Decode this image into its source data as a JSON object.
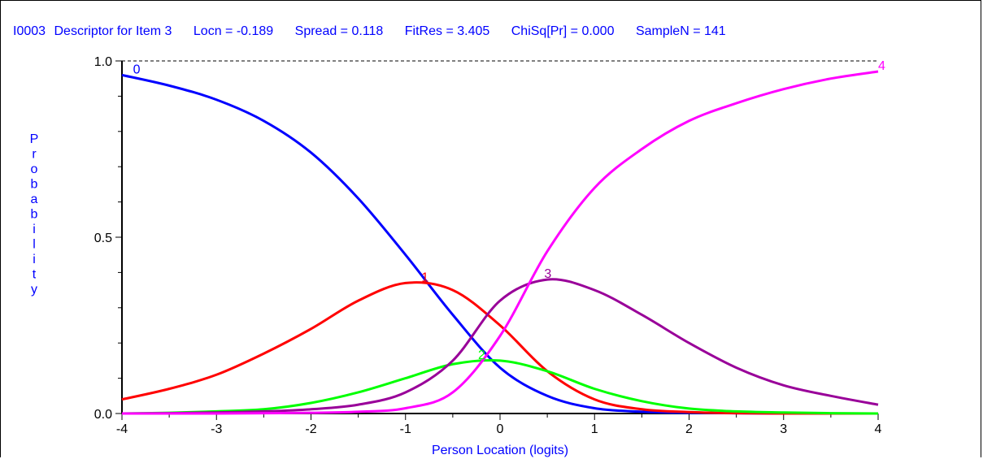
{
  "header": {
    "item": "I0003",
    "descriptor": "Descriptor for Item 3",
    "locn": "Locn = -0.189",
    "spread": "Spread = 0.118",
    "fitres": "FitRes = 3.405",
    "chisq": "ChiSq[Pr] = 0.000",
    "samplen": "SampleN = 141"
  },
  "chart_data": {
    "type": "line",
    "title": "",
    "xlabel": "Person Location (logits)",
    "ylabel": "Probability",
    "xlim": [
      -4,
      4
    ],
    "ylim": [
      0,
      1
    ],
    "x_ticks": [
      "-4",
      "-3",
      "-2",
      "-1",
      "0",
      "1",
      "2",
      "3",
      "4"
    ],
    "y_ticks": [
      "0.0",
      "0.5",
      "1.0"
    ],
    "reference_line": 1.0,
    "x": [
      -4,
      -3.5,
      -3,
      -2.5,
      -2,
      -1.5,
      -1,
      -0.5,
      0,
      0.5,
      1,
      1.5,
      2,
      2.5,
      3,
      3.5,
      4
    ],
    "series": [
      {
        "name": "0",
        "color": "#0000ff",
        "values": [
          0.96,
          0.93,
          0.89,
          0.83,
          0.74,
          0.61,
          0.45,
          0.28,
          0.13,
          0.05,
          0.015,
          0.005,
          0.002,
          0.001,
          0.0,
          0.0,
          0.0
        ]
      },
      {
        "name": "1",
        "color": "#ff0000",
        "values": [
          0.04,
          0.07,
          0.11,
          0.17,
          0.24,
          0.32,
          0.37,
          0.35,
          0.25,
          0.12,
          0.04,
          0.012,
          0.004,
          0.001,
          0.0,
          0.0,
          0.0
        ]
      },
      {
        "name": "2",
        "color": "#00ff00",
        "values": [
          0.0,
          0.002,
          0.006,
          0.012,
          0.03,
          0.06,
          0.1,
          0.14,
          0.15,
          0.12,
          0.07,
          0.035,
          0.014,
          0.006,
          0.003,
          0.001,
          0.0
        ]
      },
      {
        "name": "3",
        "color": "#990099",
        "values": [
          0.0,
          0.001,
          0.003,
          0.006,
          0.012,
          0.025,
          0.06,
          0.15,
          0.32,
          0.38,
          0.35,
          0.28,
          0.2,
          0.13,
          0.08,
          0.05,
          0.025
        ]
      },
      {
        "name": "4",
        "color": "#ff00ff",
        "values": [
          0.0,
          0.0,
          0.0,
          0.001,
          0.002,
          0.005,
          0.015,
          0.06,
          0.22,
          0.46,
          0.64,
          0.75,
          0.83,
          0.88,
          0.92,
          0.95,
          0.97
        ]
      }
    ],
    "curve_labels": [
      {
        "text": "0",
        "x": -3.9,
        "y": 0.96
      },
      {
        "text": "1",
        "x": -0.85,
        "y": 0.37
      },
      {
        "text": "2",
        "x": -0.25,
        "y": 0.15
      },
      {
        "text": "3",
        "x": 0.45,
        "y": 0.38
      },
      {
        "text": "4",
        "x": 4.0,
        "y": 0.97
      }
    ]
  }
}
